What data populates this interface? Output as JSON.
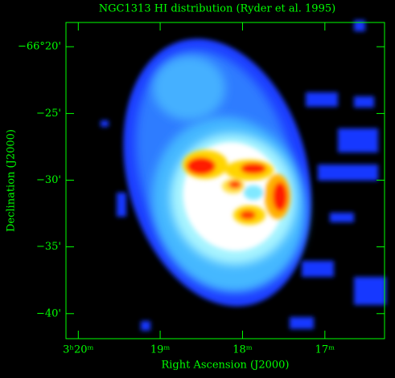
{
  "chart_data": {
    "type": "image",
    "title": "NGC1313  HI distribution  (Ryder et al. 1995)",
    "x_label": "Right Ascension (J2000)",
    "y_label": "Declination (J2000)",
    "xlim": [
      3.3358,
      3.2712
    ],
    "xticks": [
      {
        "value": 3.3333,
        "label": "3ʰ20ᵐ"
      },
      {
        "value": 3.3167,
        "label": "19ᵐ"
      },
      {
        "value": 3.3,
        "label": "18ᵐ"
      },
      {
        "value": 3.2833,
        "label": "17ᵐ"
      }
    ],
    "ylim": [
      -66.698,
      -66.303
    ],
    "yticks": [
      {
        "value": -66.3333,
        "label": "−66°20'"
      },
      {
        "value": -66.4167,
        "label": "−25'"
      },
      {
        "value": -66.5,
        "label": "−30'"
      },
      {
        "value": -66.5833,
        "label": "−35'"
      },
      {
        "value": -66.6667,
        "label": "−40'"
      }
    ]
  }
}
